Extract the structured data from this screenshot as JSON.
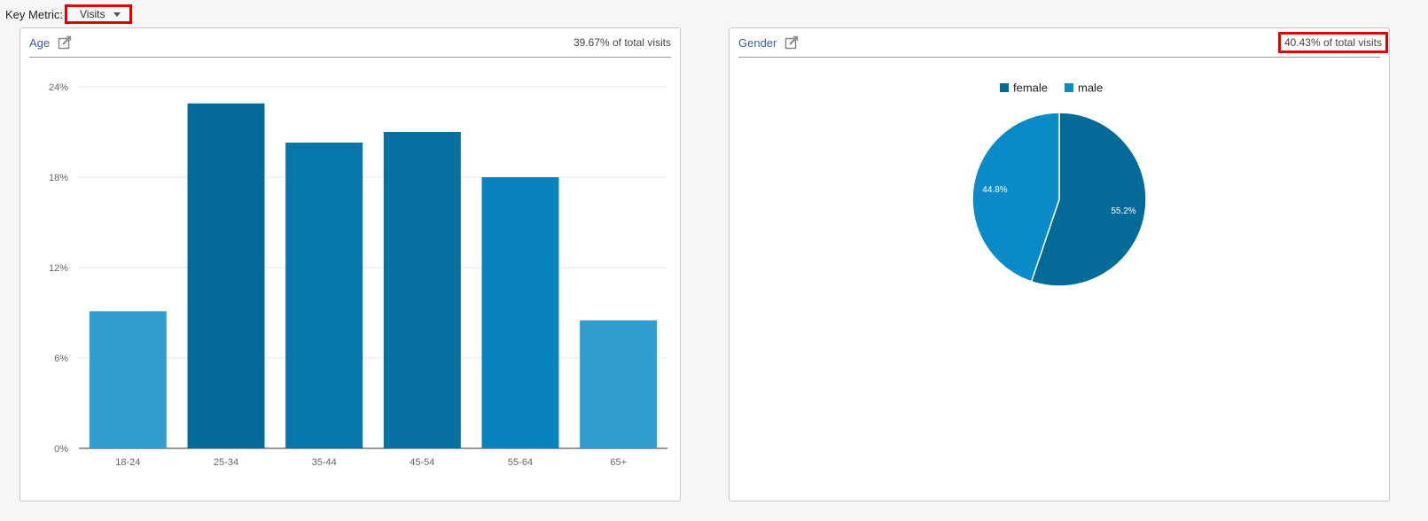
{
  "key_metric": {
    "label": "Key Metric:",
    "selected": "Visits"
  },
  "age_panel": {
    "title": "Age",
    "summary": "39.67% of total visits",
    "icon": "edit-export-icon"
  },
  "gender_panel": {
    "title": "Gender",
    "summary": "40.43% of total visits",
    "icon": "edit-export-icon"
  },
  "chart_data": [
    {
      "type": "bar",
      "title": "Age",
      "xlabel": "",
      "ylabel": "",
      "categories": [
        "18-24",
        "25-34",
        "35-44",
        "45-54",
        "55-64",
        "65+"
      ],
      "values": [
        9.1,
        22.9,
        20.3,
        21.0,
        18.0,
        8.5
      ],
      "ylim": [
        0,
        24
      ],
      "yticks": [
        0,
        6,
        12,
        18,
        24
      ],
      "ytick_labels": [
        "0%",
        "6%",
        "12%",
        "18%",
        "24%"
      ],
      "grid": true,
      "colors": [
        "#309fd0",
        "#046a98",
        "#0677a8",
        "#0670a1",
        "#0883bb",
        "#309fd0"
      ]
    },
    {
      "type": "pie",
      "title": "Gender",
      "labels": [
        "female",
        "male"
      ],
      "values": [
        55.2,
        44.8
      ],
      "data_labels": [
        "55.2%",
        "44.8%"
      ],
      "colors": [
        "#046a98",
        "#0a8bc8"
      ],
      "legend": "top"
    }
  ]
}
